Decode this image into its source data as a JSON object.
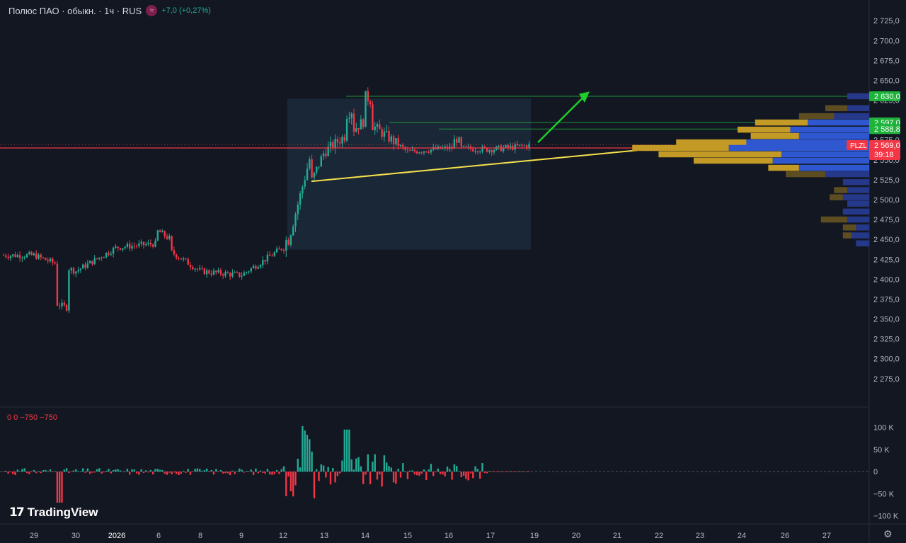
{
  "header": {
    "symbol": "Полюс ПАО · обыкн. · 1ч · RUS",
    "change": "+7,0 (+0,27%)"
  },
  "indicator": {
    "values": "0  0  −750  −750"
  },
  "brand": {
    "name": "TradingView"
  },
  "colors": {
    "background": "#131722",
    "up": "#22ab94",
    "down": "#f23645",
    "trendline": "#f7e14b",
    "arrow": "#1fce2b",
    "profile_blue": "#2f58d0",
    "profile_gold": "#c29a25",
    "range_box": "#1c2a3b"
  },
  "chart_data": {
    "type": "candlestick",
    "y_axis": {
      "ticks": [
        "2 725,0",
        "2 700,0",
        "2 675,0",
        "2 650,0",
        "2 625,0",
        "2 600,0",
        "2 575,0",
        "2 550,0",
        "2 525,0",
        "2 500,0",
        "2 475,0",
        "2 450,0",
        "2 425,0",
        "2 400,0",
        "2 375,0",
        "2 350,0",
        "2 325,0",
        "2 300,0",
        "2 275,0"
      ],
      "range": [
        2265,
        2735
      ]
    },
    "x_axis": {
      "ticks": [
        "29",
        "30",
        "2026",
        "6",
        "8",
        "9",
        "12",
        "13",
        "14",
        "15",
        "16",
        "17",
        "19",
        "20",
        "21",
        "22",
        "23",
        "24",
        "26",
        "27"
      ]
    },
    "price_labels": [
      {
        "text": "2 630,0",
        "value": 2630.0,
        "color": "#1fb33c"
      },
      {
        "text": "2 597,0",
        "value": 2597.0,
        "color": "#1fb33c"
      },
      {
        "text": "2 588,8",
        "value": 2588.8,
        "color": "#1fb33c"
      },
      {
        "text": "2 569,0",
        "value": 2569.0,
        "color": "#f23645"
      }
    ],
    "last_price": {
      "symbol": "PLZL",
      "price": "2 569,0",
      "countdown": "39:18"
    },
    "levels": [
      2630.0,
      2597.0,
      2588.8
    ],
    "trendline": {
      "from": 2523,
      "to": 2562
    },
    "series_anchors": [
      {
        "day": "29",
        "price": 2430
      },
      {
        "day": "30",
        "price": 2410
      },
      {
        "day": "2026",
        "price": 2440
      },
      {
        "day": "6",
        "price": 2445
      },
      {
        "day": "8",
        "price": 2410
      },
      {
        "day": "9",
        "price": 2405
      },
      {
        "day": "12",
        "price": 2440
      },
      {
        "day": "13",
        "price": 2560
      },
      {
        "day": "14",
        "price": 2600
      },
      {
        "day": "15",
        "price": 2560
      },
      {
        "day": "16",
        "price": 2565
      },
      {
        "day": "17",
        "price": 2563
      },
      {
        "day": "19",
        "price": 2569
      }
    ],
    "volume_profile_levels": [
      2630,
      2615,
      2605,
      2597,
      2588,
      2580,
      2572,
      2565,
      2557,
      2549,
      2540,
      2532,
      2522,
      2512,
      2503,
      2495,
      2485,
      2475,
      2465,
      2455,
      2445
    ],
    "volume_profile_blue": [
      5,
      5,
      8,
      14,
      18,
      16,
      28,
      32,
      20,
      22,
      16,
      10,
      6,
      5,
      6,
      5,
      6,
      5,
      3,
      4,
      3
    ],
    "volume_profile_gold": [
      0,
      5,
      8,
      12,
      12,
      11,
      16,
      22,
      28,
      18,
      7,
      9,
      0,
      3,
      3,
      0,
      0,
      6,
      3,
      2,
      0
    ],
    "delta": {
      "ticks": [
        "100 K",
        "50 K",
        "0",
        "−50 K",
        "−100 K"
      ],
      "range": [
        -110000,
        125000
      ]
    }
  }
}
